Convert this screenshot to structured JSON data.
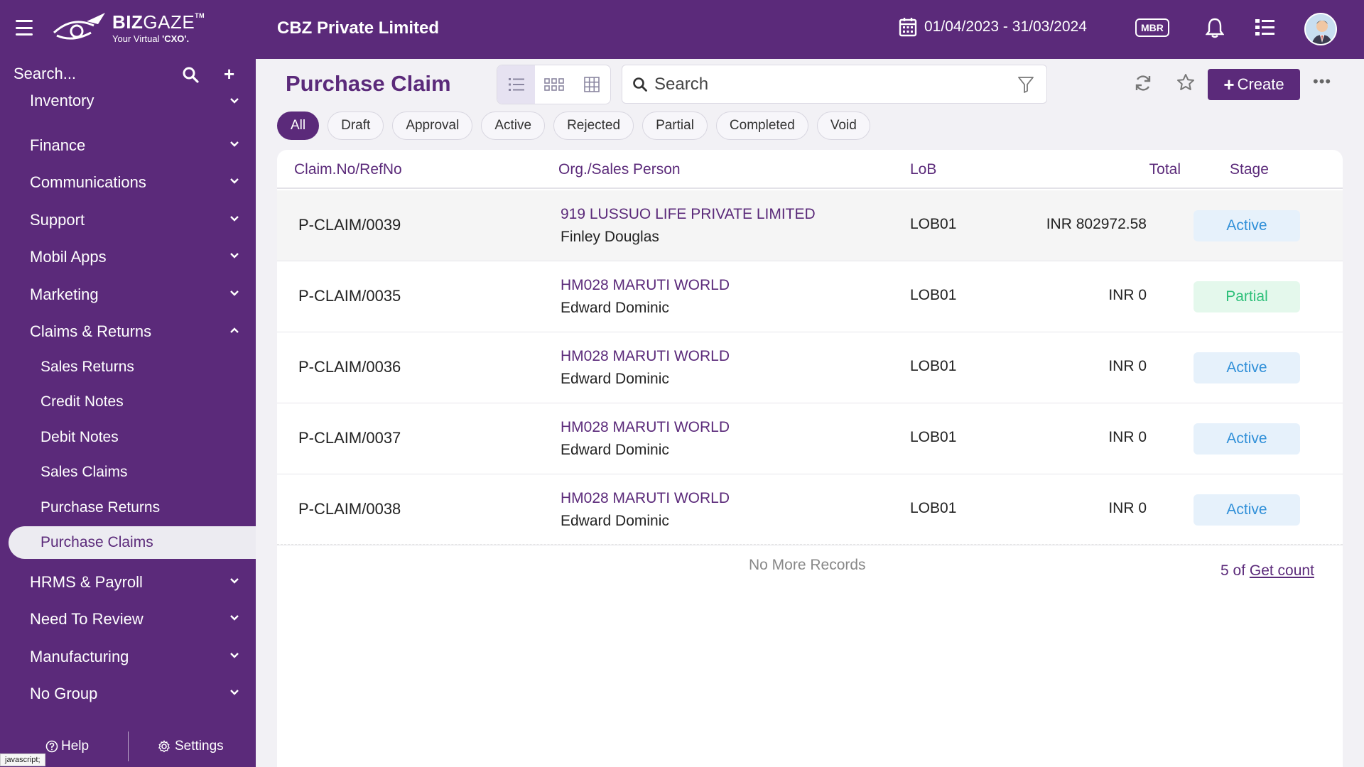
{
  "header": {
    "logo_name_bold": "BIZ",
    "logo_name_light": "GAZE",
    "logo_tm": "TM",
    "logo_tagline_prefix": "Your Virtual ",
    "logo_tagline_bold": "'CXO'.",
    "company": "CBZ Private Limited",
    "date_range": "01/04/2023 - 31/03/2024",
    "mbr_label": "MBR"
  },
  "sidebar": {
    "search_placeholder": "Search...",
    "items": [
      {
        "label": "Inventory"
      },
      {
        "label": "Finance"
      },
      {
        "label": "Communications"
      },
      {
        "label": "Support"
      },
      {
        "label": "Mobil Apps"
      },
      {
        "label": "Marketing"
      },
      {
        "label": "Claims & Returns"
      },
      {
        "label": "HRMS & Payroll"
      },
      {
        "label": "Need To Review"
      },
      {
        "label": "Manufacturing"
      },
      {
        "label": "No Group"
      }
    ],
    "sub_items": [
      {
        "label": "Sales Returns"
      },
      {
        "label": "Credit Notes"
      },
      {
        "label": "Debit Notes"
      },
      {
        "label": "Sales Claims"
      },
      {
        "label": "Purchase Returns"
      },
      {
        "label": "Purchase Claims"
      }
    ],
    "help_label": "Help",
    "settings_label": "Settings",
    "status_tip": "javascript;"
  },
  "page": {
    "title": "Purchase Claim",
    "search_placeholder": "Search",
    "create_label": "Create",
    "more_label": "•••"
  },
  "filters": [
    "All",
    "Draft",
    "Approval",
    "Active",
    "Rejected",
    "Partial",
    "Completed",
    "Void"
  ],
  "table": {
    "columns": {
      "claim": "Claim.No/RefNo",
      "org": "Org./Sales Person",
      "lob": "LoB",
      "total": "Total",
      "stage": "Stage"
    },
    "rows": [
      {
        "claim": "P-CLAIM/0039",
        "org": "919 LUSSUO LIFE PRIVATE LIMITED",
        "person": "Finley Douglas",
        "lob": "LOB01",
        "total": "INR 802972.58",
        "stage": "Active"
      },
      {
        "claim": "P-CLAIM/0035",
        "org": "HM028 MARUTI WORLD",
        "person": "Edward Dominic",
        "lob": "LOB01",
        "total": "INR 0",
        "stage": "Partial"
      },
      {
        "claim": "P-CLAIM/0036",
        "org": "HM028 MARUTI WORLD",
        "person": "Edward Dominic",
        "lob": "LOB01",
        "total": "INR 0",
        "stage": "Active"
      },
      {
        "claim": "P-CLAIM/0037",
        "org": "HM028 MARUTI WORLD",
        "person": "Edward Dominic",
        "lob": "LOB01",
        "total": "INR 0",
        "stage": "Active"
      },
      {
        "claim": "P-CLAIM/0038",
        "org": "HM028 MARUTI WORLD",
        "person": "Edward Dominic",
        "lob": "LOB01",
        "total": "INR 0",
        "stage": "Active"
      }
    ],
    "no_more": "No More Records",
    "count_prefix": "5 of",
    "count_link": "Get count"
  },
  "colors": {
    "brand": "#5b2a7a",
    "active_stage": "#2f8fd8",
    "partial_stage": "#2ec07a"
  }
}
